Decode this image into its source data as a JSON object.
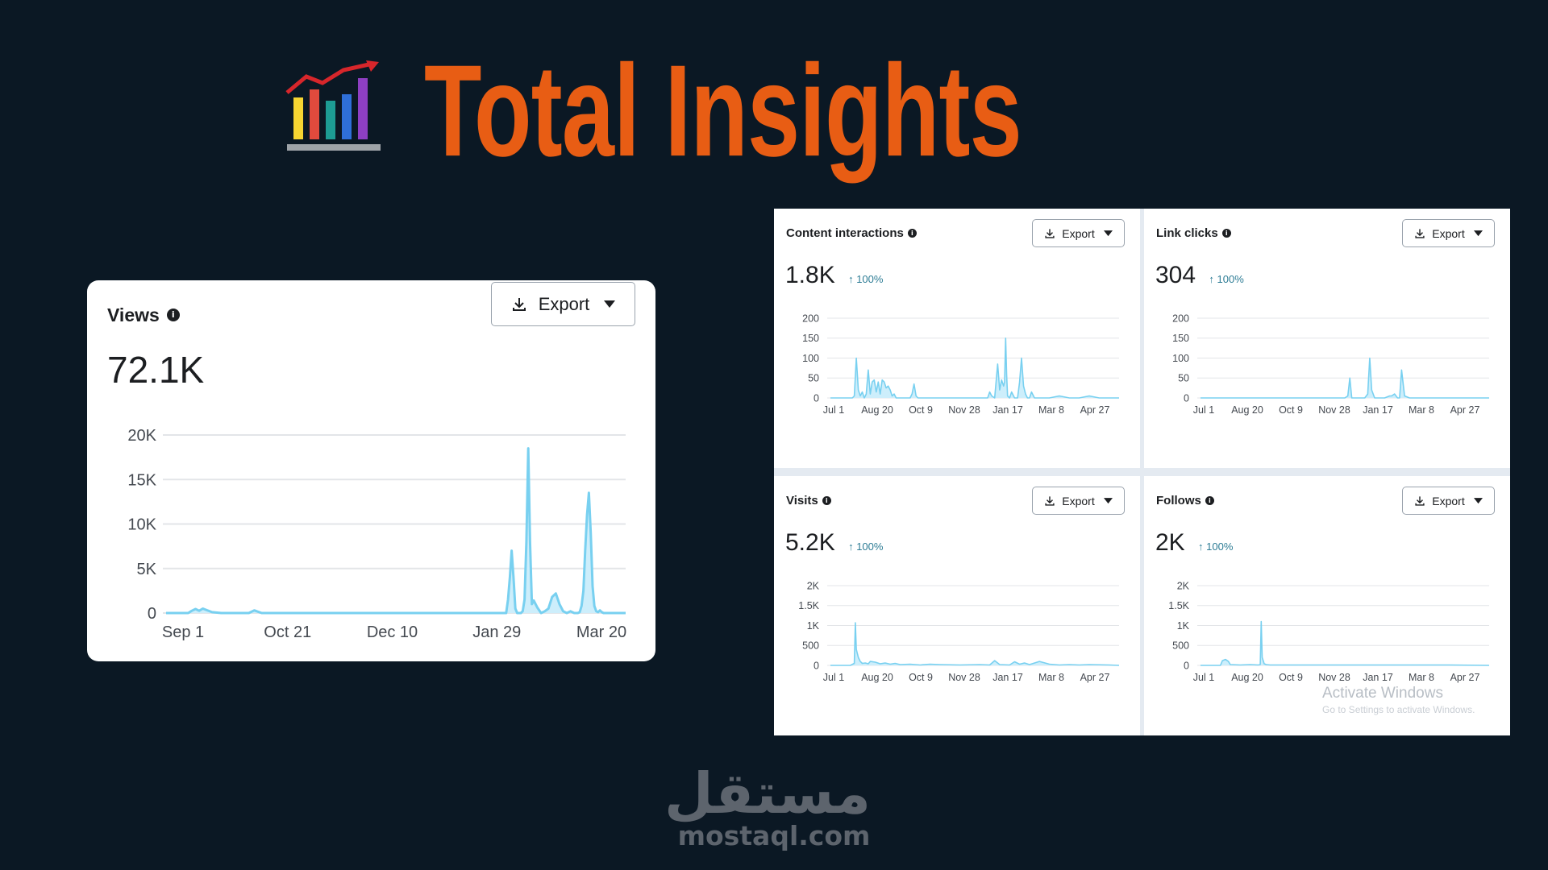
{
  "header": {
    "title": "Total Insights",
    "icon": "bar-chart-growth-icon"
  },
  "views_card": {
    "title": "Views",
    "value": "72.1K",
    "export_label": "Export",
    "chart_data": {
      "type": "area",
      "title": "Views",
      "x_tick_labels": [
        "Sep 1",
        "Oct 21",
        "Dec 10",
        "Jan 29",
        "Mar 20"
      ],
      "y_tick_labels": [
        "0",
        "5K",
        "10K",
        "15K",
        "20K"
      ],
      "ylim": [
        0,
        20000
      ],
      "grid": true,
      "series": [
        {
          "x": [
            0,
            8,
            12,
            14,
            16,
            18,
            20,
            25,
            30,
            35,
            40,
            42,
            45,
            48,
            52,
            60,
            70,
            80,
            90,
            100,
            105,
            108,
            110,
            112,
            115,
            118,
            120,
            122,
            124,
            126,
            128,
            130,
            132,
            134,
            136,
            140,
            145,
            150,
            155,
            160,
            165,
            170,
            175,
            180,
            185,
            186,
            187,
            188,
            189,
            190,
            191,
            192,
            193,
            194,
            195,
            196,
            197,
            198,
            199,
            200,
            202,
            204,
            206,
            208,
            210,
            212,
            214,
            216,
            218,
            220,
            222,
            224,
            225,
            226,
            227,
            228,
            229,
            230,
            231,
            232,
            233,
            234,
            235,
            236,
            237,
            238,
            240,
            245,
            250
          ],
          "y": [
            0,
            0,
            0,
            250,
            450,
            250,
            500,
            100,
            0,
            0,
            0,
            0,
            0,
            300,
            0,
            0,
            0,
            0,
            0,
            0,
            0,
            0,
            0,
            0,
            0,
            0,
            0,
            0,
            0,
            0,
            0,
            0,
            0,
            0,
            0,
            0,
            0,
            0,
            0,
            0,
            0,
            0,
            0,
            0,
            0,
            1500,
            4000,
            7000,
            4000,
            500,
            0,
            0,
            0,
            200,
            1500,
            8000,
            18500,
            8000,
            1000,
            1400,
            600,
            0,
            200,
            500,
            1800,
            2200,
            1000,
            200,
            0,
            200,
            0,
            0,
            100,
            800,
            2500,
            7000,
            11000,
            13500,
            9000,
            3000,
            800,
            200,
            100,
            300,
            100,
            0,
            0,
            0,
            0
          ]
        }
      ]
    }
  },
  "content_interactions": {
    "title": "Content interactions",
    "value": "1.8K",
    "change": "100%",
    "export_label": "Export",
    "chart_data": {
      "type": "area",
      "title": "Content interactions",
      "x_tick_labels": [
        "Jul 1",
        "Aug 20",
        "Oct 9",
        "Nov 28",
        "Jan 17",
        "Mar 8",
        "Apr 27"
      ],
      "y_tick_labels": [
        "0",
        "50",
        "100",
        "150",
        "200"
      ],
      "ylim": [
        0,
        200
      ],
      "grid": true,
      "series": [
        {
          "x": [
            0,
            15,
            20,
            22,
            24,
            26,
            28,
            30,
            32,
            34,
            36,
            38,
            40,
            42,
            44,
            46,
            48,
            50,
            52,
            54,
            56,
            58,
            60,
            62,
            64,
            66,
            68,
            70,
            75,
            80,
            82,
            84,
            86,
            88,
            90,
            95,
            100,
            110,
            120,
            130,
            140,
            150,
            155,
            158,
            160,
            162,
            165,
            168,
            170,
            172,
            174,
            175,
            176,
            177,
            178,
            180,
            182,
            185,
            188,
            190,
            192,
            194,
            196,
            198,
            200,
            202,
            205,
            210,
            220,
            230,
            240,
            250,
            260,
            270,
            280,
            290
          ],
          "y": [
            0,
            0,
            0,
            0,
            5,
            100,
            20,
            5,
            15,
            0,
            10,
            70,
            10,
            40,
            45,
            15,
            40,
            10,
            45,
            40,
            25,
            30,
            20,
            5,
            10,
            0,
            0,
            0,
            0,
            0,
            10,
            35,
            5,
            0,
            0,
            0,
            0,
            0,
            0,
            0,
            0,
            0,
            0,
            0,
            15,
            5,
            0,
            85,
            20,
            45,
            30,
            40,
            150,
            60,
            5,
            0,
            15,
            0,
            0,
            40,
            100,
            30,
            10,
            0,
            0,
            15,
            0,
            0,
            0,
            5,
            0,
            0,
            5,
            0,
            0,
            0
          ]
        }
      ]
    }
  },
  "link_clicks": {
    "title": "Link clicks",
    "value": "304",
    "change": "100%",
    "export_label": "Export",
    "chart_data": {
      "type": "area",
      "title": "Link clicks",
      "x_tick_labels": [
        "Jul 1",
        "Aug 20",
        "Oct 9",
        "Nov 28",
        "Jan 17",
        "Mar 8",
        "Apr 27"
      ],
      "y_tick_labels": [
        "0",
        "50",
        "100",
        "150",
        "200"
      ],
      "ylim": [
        0,
        200
      ],
      "grid": true,
      "series": [
        {
          "x": [
            0,
            50,
            100,
            140,
            145,
            148,
            150,
            152,
            155,
            160,
            165,
            168,
            170,
            172,
            175,
            180,
            185,
            190,
            192,
            195,
            198,
            200,
            202,
            205,
            210,
            250,
            290
          ],
          "y": [
            0,
            0,
            0,
            0,
            0,
            5,
            50,
            0,
            0,
            0,
            0,
            10,
            100,
            20,
            0,
            0,
            0,
            5,
            5,
            10,
            0,
            0,
            70,
            5,
            0,
            0,
            0
          ]
        }
      ]
    }
  },
  "visits": {
    "title": "Visits",
    "value": "5.2K",
    "change": "100%",
    "export_label": "Export",
    "chart_data": {
      "type": "area",
      "title": "Visits",
      "x_tick_labels": [
        "Jul 1",
        "Aug 20",
        "Oct 9",
        "Nov 28",
        "Jan 17",
        "Mar 8",
        "Apr 27"
      ],
      "y_tick_labels": [
        "0",
        "500",
        "1K",
        "1.5K",
        "2K"
      ],
      "ylim": [
        0,
        2000
      ],
      "grid": true,
      "series": [
        {
          "x": [
            0,
            20,
            24,
            25,
            26,
            28,
            30,
            32,
            35,
            38,
            40,
            45,
            50,
            55,
            60,
            65,
            70,
            80,
            90,
            100,
            110,
            130,
            150,
            160,
            165,
            170,
            180,
            185,
            190,
            195,
            200,
            210,
            220,
            230,
            240,
            250,
            260,
            280,
            290
          ],
          "y": [
            0,
            0,
            50,
            1070,
            400,
            200,
            100,
            50,
            60,
            40,
            100,
            80,
            40,
            60,
            30,
            50,
            20,
            30,
            10,
            30,
            20,
            10,
            20,
            10,
            120,
            20,
            10,
            90,
            30,
            60,
            20,
            100,
            30,
            10,
            20,
            10,
            20,
            10,
            0
          ]
        }
      ]
    }
  },
  "follows": {
    "title": "Follows",
    "value": "2K",
    "change": "100%",
    "export_label": "Export",
    "chart_data": {
      "type": "area",
      "title": "Follows",
      "x_tick_labels": [
        "Jul 1",
        "Aug 20",
        "Oct 9",
        "Nov 28",
        "Jan 17",
        "Mar 8",
        "Apr 27"
      ],
      "y_tick_labels": [
        "0",
        "500",
        "1K",
        "1.5K",
        "2K"
      ],
      "ylim": [
        0,
        2000
      ],
      "grid": true,
      "series": [
        {
          "x": [
            0,
            20,
            22,
            25,
            28,
            30,
            40,
            50,
            58,
            60,
            61,
            62,
            64,
            66,
            70,
            80,
            100,
            130,
            160,
            200,
            250,
            290
          ],
          "y": [
            0,
            0,
            120,
            150,
            100,
            20,
            10,
            20,
            10,
            20,
            1100,
            200,
            40,
            20,
            10,
            10,
            10,
            10,
            10,
            10,
            10,
            0
          ]
        }
      ]
    }
  },
  "watermark": {
    "arabic": "مستقل",
    "url": "mostaql.com"
  },
  "os_overlay": {
    "title": "Activate Windows",
    "subtitle": "Go to Settings to activate Windows."
  },
  "colors": {
    "background": "#0b1824",
    "title": "#e85d14",
    "line": "#78d0f0",
    "fill": "#cdeefb"
  }
}
